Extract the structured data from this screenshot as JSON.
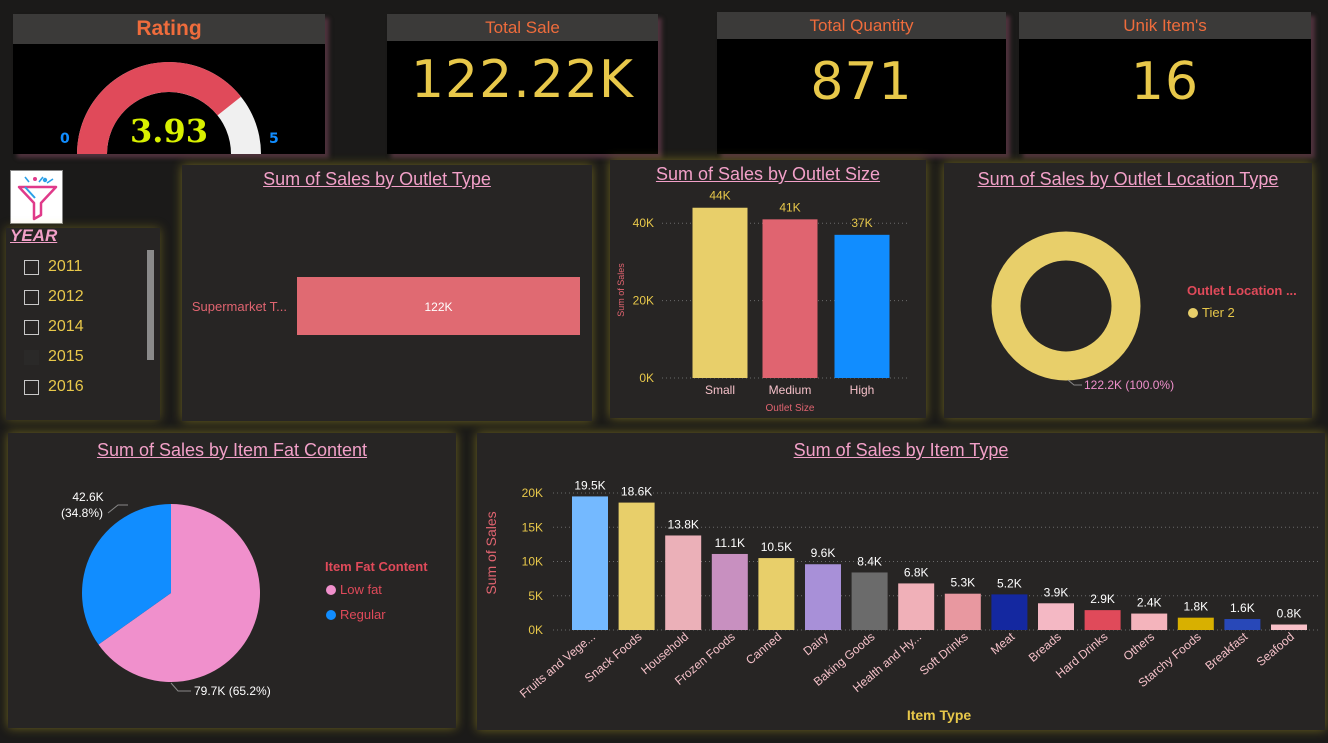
{
  "kpi": {
    "rating": {
      "title": "Rating",
      "value": "3.93",
      "min": "0",
      "max": "5",
      "fraction": 0.786
    },
    "total_sale": {
      "title": "Total Sale",
      "value": "122.22K"
    },
    "total_quantity": {
      "title": "Total Quantity",
      "value": "871"
    },
    "unique_items": {
      "title": "Unik Item's",
      "value": "16"
    }
  },
  "slicer": {
    "title": "YEAR",
    "items": [
      {
        "label": "2011",
        "checked": false
      },
      {
        "label": "2012",
        "checked": false
      },
      {
        "label": "2014",
        "checked": false
      },
      {
        "label": "2015",
        "checked": false
      },
      {
        "label": "2016",
        "checked": false
      }
    ]
  },
  "colors": {
    "accent_orange": "#ef6c3c",
    "kpi_yellow": "#e8c84a",
    "title_pink": "#f2a0c8",
    "bar_red": "#e06470",
    "bar_blue": "#118dff"
  },
  "chart_data": [
    {
      "type": "bar",
      "orientation": "horizontal",
      "title": "Sum of Sales by Outlet Type",
      "categories": [
        "Supermarket T..."
      ],
      "values": [
        122
      ],
      "data_labels": [
        "122K"
      ]
    },
    {
      "type": "bar",
      "title": "Sum of Sales by Outlet Size",
      "xlabel": "Outlet Size",
      "ylabel": "Sum of Sales",
      "categories": [
        "Small",
        "Medium",
        "High"
      ],
      "values": [
        44,
        41,
        37
      ],
      "data_labels": [
        "44K",
        "41K",
        "37K"
      ],
      "yticks": [
        "0K",
        "20K",
        "40K"
      ],
      "ylim": [
        0,
        46
      ],
      "colors": [
        "#e8cf6a",
        "#e06470",
        "#118dff"
      ]
    },
    {
      "type": "pie",
      "subtype": "donut",
      "title": "Sum of Sales by Outlet Location Type",
      "legend_title": "Outlet Location ...",
      "labels": [
        "Tier 2"
      ],
      "values": [
        122.2
      ],
      "data_labels": [
        "122.2K (100.0%)"
      ],
      "colors": [
        "#e8cf6a"
      ]
    },
    {
      "type": "pie",
      "title": "Sum of Sales by Item Fat Content",
      "legend_title": "Item Fat Content",
      "labels": [
        "Low fat",
        "Regular"
      ],
      "values": [
        79.7,
        42.6
      ],
      "data_labels": [
        "79.7K (65.2%)",
        "42.6K\n(34.8%)"
      ],
      "colors": [
        "#f090cc",
        "#118dff"
      ]
    },
    {
      "type": "bar",
      "title": "Sum of Sales by Item Type",
      "xlabel": "Item Type",
      "ylabel": "Sum of Sales",
      "categories": [
        "Fruits and Vege...",
        "Snack Foods",
        "Household",
        "Frozen Foods",
        "Canned",
        "Dairy",
        "Baking Goods",
        "Health and Hy...",
        "Soft Drinks",
        "Meat",
        "Breads",
        "Hard Drinks",
        "Others",
        "Starchy Foods",
        "Breakfast",
        "Seafood"
      ],
      "values": [
        19.5,
        18.6,
        13.8,
        11.1,
        10.5,
        9.6,
        8.4,
        6.8,
        5.3,
        5.2,
        3.9,
        2.9,
        2.4,
        1.8,
        1.6,
        0.8
      ],
      "data_labels": [
        "19.5K",
        "18.6K",
        "13.8K",
        "11.1K",
        "10.5K",
        "9.6K",
        "8.4K",
        "6.8K",
        "5.3K",
        "5.2K",
        "3.9K",
        "2.9K",
        "2.4K",
        "1.8K",
        "1.6K",
        "0.8K"
      ],
      "yticks": [
        "0K",
        "5K",
        "10K",
        "15K",
        "20K"
      ],
      "ylim": [
        0,
        20
      ],
      "colors": [
        "#74b9ff",
        "#e8cf6a",
        "#ebb0b8",
        "#c890c0",
        "#e8cf6a",
        "#a890d8",
        "#6b6b6b",
        "#f0b0b8",
        "#e898a0",
        "#1428a0",
        "#f4b8c4",
        "#e04a5a",
        "#f4b4bc",
        "#d8b000",
        "#2848b8",
        "#f8c0c8"
      ]
    }
  ]
}
